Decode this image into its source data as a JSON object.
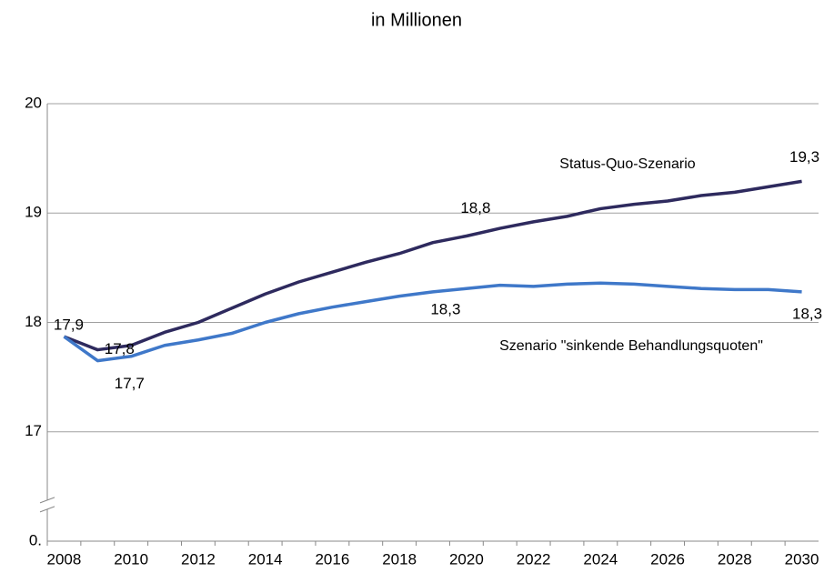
{
  "chart_data": {
    "type": "line",
    "title": "in Millionen",
    "categories": [
      "2008",
      null,
      "2010",
      null,
      "2012",
      null,
      "2014",
      null,
      "2016",
      null,
      "2018",
      null,
      "2020",
      null,
      "2022",
      null,
      "2024",
      null,
      "2026",
      null,
      "2028",
      null,
      "2030"
    ],
    "series": [
      {
        "name": "Status-Quo-Szenario",
        "color": "#2e2a5e",
        "values": [
          17.87,
          17.75,
          17.79,
          17.91,
          18.0,
          18.13,
          18.26,
          18.37,
          18.46,
          18.55,
          18.63,
          18.73,
          18.79,
          18.86,
          18.92,
          18.97,
          19.04,
          19.08,
          19.11,
          19.16,
          19.19,
          19.24,
          19.29
        ],
        "value_labels": [
          "17,9",
          "17,8",
          null,
          null,
          null,
          null,
          null,
          null,
          null,
          null,
          null,
          null,
          "18,8",
          null,
          null,
          null,
          null,
          null,
          null,
          null,
          null,
          null,
          "19,3"
        ]
      },
      {
        "name": "Szenario \"sinkende Behandlungsquoten\"",
        "color": "#3f78c9",
        "values": [
          17.87,
          17.65,
          17.69,
          17.79,
          17.84,
          17.9,
          18.0,
          18.08,
          18.14,
          18.19,
          18.24,
          18.28,
          18.31,
          18.34,
          18.33,
          18.35,
          18.36,
          18.35,
          18.33,
          18.31,
          18.3,
          18.3,
          18.28
        ],
        "value_labels": [
          null,
          "17,7",
          null,
          null,
          null,
          null,
          null,
          null,
          null,
          null,
          null,
          null,
          "18,3",
          null,
          null,
          null,
          null,
          null,
          null,
          null,
          null,
          null,
          "18,3"
        ]
      }
    ],
    "ylim": [
      0,
      20
    ],
    "yticks": [
      {
        "value": 0,
        "label": "0."
      },
      17,
      18,
      19,
      20
    ],
    "axis_break": true,
    "grid": true
  }
}
